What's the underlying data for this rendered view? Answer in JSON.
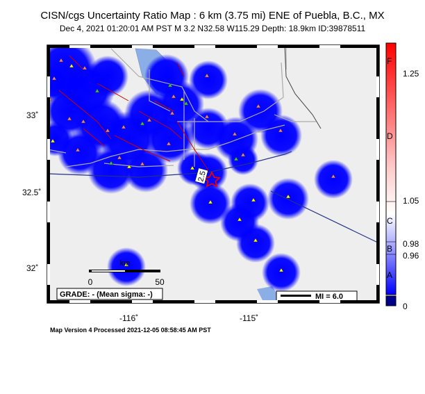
{
  "header": {
    "title": "CISN/cgs Uncertainty Ratio Map : 6 km (3.75 mi) ENE of Puebla, B.C., MX",
    "subtitle": "Dec  4, 2021 01:20:01 AM PST   M 3.2   N32.58 W115.29   Depth: 18.9km   ID:39878511"
  },
  "axes": {
    "lat_labels": [
      "33˚",
      "32.5˚",
      "32˚"
    ],
    "lon_labels": [
      "-116˚",
      "-115˚"
    ]
  },
  "colorbar": {
    "labels": [
      "F",
      "1.25",
      "D",
      "1.05",
      "C",
      "B",
      "0.98",
      "0.96",
      "A",
      "0"
    ],
    "colors": {
      "top": "#ff0000",
      "mid": "#ffffff",
      "low": "#0000ff",
      "bottom": "#00008b"
    }
  },
  "scale_bar": {
    "unit": "km",
    "min": "0",
    "max": "50"
  },
  "grade_box": {
    "text": "GRADE: - (Mean sigma: -)"
  },
  "mi_legend": {
    "text": "MI = 6.0"
  },
  "epicenter": {
    "label": "2.5"
  },
  "footer": {
    "text": "Map Version 4 Processed 2021-12-05 08:58:45 AM PST"
  },
  "colors": {
    "land": "#eeeeee",
    "water": "#8caee6",
    "uncertainty": "#0000ff",
    "fault": "#cc0000",
    "road": "#aaaaaa",
    "station_red": "#f08080",
    "station_yellow": "#ffff00",
    "station_green": "#33cc33"
  }
}
